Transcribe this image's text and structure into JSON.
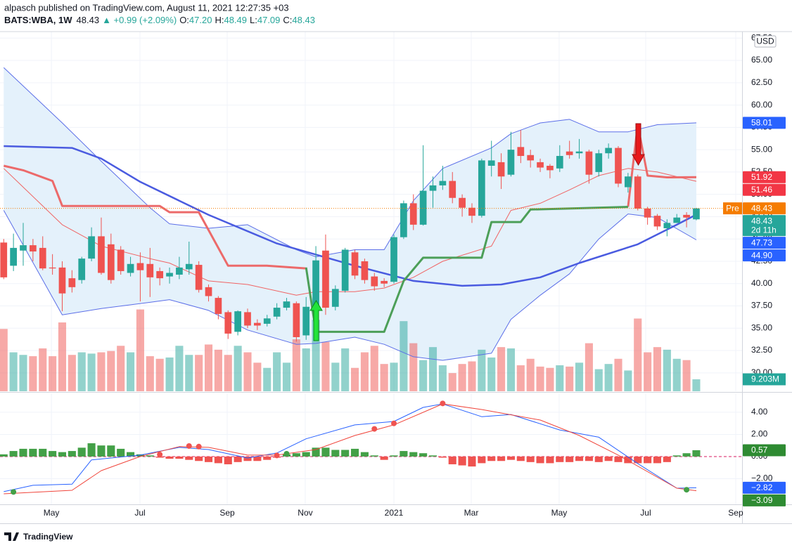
{
  "chart_data": {
    "type": "candlestick",
    "header": {
      "publisher": "alpasch published on TradingView.com, August 11, 2021 12:27:35 +03",
      "symbol": "BATS:WBA, 1W",
      "last": "48.43",
      "change": "▲ +0.99 (+2.09%)",
      "ohlc": [
        {
          "key": "O:",
          "value": "47.20"
        },
        {
          "key": "H:",
          "value": "48.49"
        },
        {
          "key": "L:",
          "value": "47.09"
        },
        {
          "key": "C:",
          "value": "48.43"
        }
      ]
    },
    "currency": "USD",
    "xlim": [
      -0.38,
      75.69
    ],
    "xticks": [
      {
        "value": 4.89,
        "label": "May"
      },
      {
        "value": 13.97,
        "label": "Jul"
      },
      {
        "value": 22.91,
        "label": "Sep"
      },
      {
        "value": 30.91,
        "label": "Nov"
      },
      {
        "value": 40,
        "label": "2021"
      },
      {
        "value": 47.93,
        "label": "Mar"
      },
      {
        "value": 56.94,
        "label": "May"
      },
      {
        "value": 65.81,
        "label": "Jul"
      },
      {
        "value": 75.04,
        "label": "Sep"
      }
    ],
    "ylim": [
      27.94,
      68.23
    ],
    "yticks": [
      {
        "value": 30,
        "label": "30.00"
      },
      {
        "value": 32.5,
        "label": "32.50"
      },
      {
        "value": 35,
        "label": "35.00"
      },
      {
        "value": 37.5,
        "label": "37.50"
      },
      {
        "value": 40,
        "label": "40.00"
      },
      {
        "value": 42.5,
        "label": "42.50"
      },
      {
        "value": 45,
        "label": "45.00"
      },
      {
        "value": 47.5,
        "label": "47.50"
      },
      {
        "value": 50,
        "label": "50.00"
      },
      {
        "value": 52.5,
        "label": "52.50"
      },
      {
        "value": 55,
        "label": "55.00"
      },
      {
        "value": 57.5,
        "label": "57.50"
      },
      {
        "value": 60,
        "label": "60.00"
      },
      {
        "value": 62.5,
        "label": "62.50"
      },
      {
        "value": 65,
        "label": "65.00"
      },
      {
        "value": 67.5,
        "label": "67.50"
      }
    ],
    "grid": true,
    "up_color": "#26a69a",
    "down_color": "#ef5350",
    "open": [
      44.6,
      42,
      43.7,
      44.3,
      44,
      41.8,
      41.8,
      40.6,
      40.4,
      42.8,
      45.3,
      44.4,
      43.8,
      41.2,
      42.3,
      42.2,
      41.4,
      40.8,
      41,
      41.6,
      42.1,
      39.6,
      38.4,
      36.8,
      34.6,
      36.8,
      35.6,
      35.5,
      36.3,
      37.3,
      37.8,
      34.2,
      37.5,
      43.7,
      37.4,
      39.2,
      43.5,
      42.5,
      40.8,
      40.3,
      40.2,
      45.2,
      49,
      46.6,
      50.4,
      51,
      51.5,
      49.6,
      48.5,
      47.6,
      53.2,
      53.6,
      52.2,
      55.3,
      54.4,
      53.6,
      53.2,
      52.9,
      54.8,
      54.6,
      54.8,
      52.5,
      54.6,
      55.2,
      50.8,
      52,
      48.4,
      47.6,
      46.2,
      46.8,
      47.7,
      47.2
    ],
    "high": [
      45,
      45.6,
      46.8,
      45,
      45.3,
      43.3,
      42.5,
      41.5,
      43,
      46.3,
      47.4,
      45.6,
      44.2,
      43,
      43.5,
      44,
      41.8,
      41.8,
      43,
      44.7,
      42.5,
      39.9,
      38.6,
      37,
      37,
      37.2,
      36,
      36.5,
      37.8,
      38.4,
      38,
      38.5,
      44.2,
      45.5,
      39.8,
      44,
      43.8,
      42.8,
      41.2,
      40.6,
      45.5,
      49.3,
      50,
      55.5,
      52,
      53.2,
      52.5,
      50,
      49,
      54,
      56,
      54.6,
      57,
      57.2,
      55,
      54,
      53.4,
      55.5,
      56,
      56.2,
      55,
      55,
      55.7,
      55.4,
      52.4,
      52.2,
      48.6,
      47.8,
      47.2,
      47.8,
      48,
      48.49
    ],
    "low": [
      40.5,
      41.4,
      42,
      42.5,
      41.5,
      41,
      36.9,
      39,
      40,
      42.5,
      41,
      40,
      41,
      40.8,
      38,
      38.5,
      39.8,
      40,
      40.5,
      41,
      39,
      38,
      36,
      33.8,
      34.2,
      35,
      34.8,
      35.2,
      36,
      37,
      33.5,
      33.7,
      37.3,
      36.5,
      37,
      39,
      40.5,
      40,
      39.2,
      39.6,
      40,
      45,
      46,
      46.5,
      48.5,
      50.5,
      49,
      47.5,
      46.8,
      47.4,
      52,
      50.6,
      52,
      53.5,
      53,
      52.5,
      51.8,
      52.5,
      54,
      54,
      51.2,
      52,
      54,
      50.8,
      50.2,
      48.2,
      46.6,
      46,
      45.3,
      46.8,
      46.3,
      47.09
    ],
    "close": [
      40.7,
      44,
      44.3,
      43.6,
      41.7,
      41.7,
      38.9,
      39.6,
      42.8,
      45.3,
      41.2,
      40.4,
      41.4,
      42.2,
      41.5,
      40.7,
      40.6,
      41.2,
      41.8,
      42.2,
      39.3,
      38.6,
      36.6,
      34.4,
      36.9,
      35.3,
      35.3,
      36.1,
      37.3,
      38,
      34,
      37.4,
      42.6,
      37.3,
      39.4,
      43.8,
      40.9,
      40.4,
      39.7,
      40,
      45.2,
      49,
      46.6,
      50.4,
      51,
      51.5,
      49.6,
      48.5,
      47.6,
      53.8,
      53.8,
      52,
      55,
      54.3,
      53.8,
      53,
      52.7,
      54.3,
      54.4,
      54.8,
      52.2,
      54.6,
      55.2,
      51.2,
      52,
      48.4,
      47.4,
      46.4,
      46.8,
      47.4,
      47.4,
      48.43
    ],
    "volume": [
      48,
      30,
      28,
      27,
      33,
      27,
      53,
      28,
      30,
      29,
      30,
      31,
      35,
      30,
      63,
      27,
      25,
      26,
      35,
      28,
      28,
      36,
      32,
      28,
      35,
      30,
      22,
      18,
      30,
      22,
      40,
      33,
      55,
      38,
      22,
      33,
      18,
      30,
      35,
      21,
      22,
      54,
      37,
      24,
      34,
      20,
      14,
      21,
      23,
      32,
      26,
      34,
      33,
      20,
      25,
      19,
      18,
      20,
      19,
      22,
      37,
      17,
      21,
      25,
      16,
      56,
      30,
      34,
      32,
      25,
      24,
      9.203
    ],
    "volume_lim": [
      0,
      277
    ],
    "volume_tag": {
      "value": 9.203,
      "label": "9.203M",
      "color": "#26a69a"
    },
    "bollinger": {
      "color": "#5b6ee8",
      "fill": "#e4f1fb",
      "x": [
        0,
        6,
        10,
        15,
        17,
        21,
        25,
        30,
        32,
        36,
        39,
        42,
        45,
        50,
        52,
        55,
        58,
        61,
        64,
        67,
        71
      ],
      "upper": [
        64.2,
        58,
        53.7,
        48.5,
        46.7,
        46.2,
        46.6,
        43.8,
        43,
        43.8,
        43.8,
        49.3,
        52.9,
        55.2,
        56.8,
        58,
        58.4,
        57,
        57,
        57.8,
        58.01
      ],
      "lower": [
        48.2,
        36.5,
        37.2,
        37.9,
        38.2,
        37,
        34.8,
        33.2,
        33.3,
        34,
        33.2,
        31.8,
        31.4,
        32.2,
        36,
        38.7,
        41.1,
        45,
        47.8,
        47.4,
        44.9
      ]
    },
    "lines": [
      {
        "color": "#f06464",
        "width": 1,
        "x": [
          0,
          6,
          10,
          15,
          17,
          21,
          25,
          30,
          32,
          36,
          39,
          42,
          45,
          50,
          52,
          55,
          58,
          61,
          64,
          67,
          71
        ],
        "values": [
          52.9,
          46.6,
          44.2,
          42.8,
          42.3,
          40.3,
          39.9,
          38.7,
          39.1,
          39.1,
          39.5,
          40.7,
          42.5,
          44.2,
          48.2,
          49,
          50.5,
          52.1,
          52.9,
          52.5,
          51.46
        ]
      },
      {
        "color": "#4a5be0",
        "width": 2.5,
        "x": [
          0,
          7,
          10,
          14,
          21,
          28,
          36,
          42,
          47,
          51,
          55,
          59,
          65,
          69,
          71
        ],
        "values": [
          55.4,
          55.2,
          54,
          51.4,
          47.7,
          44.5,
          42,
          40.3,
          39.75,
          39.9,
          40.7,
          42.3,
          44.4,
          46.6,
          47.73
        ]
      },
      {
        "color": "#ec6a6a",
        "width": 3,
        "x": [
          0,
          2,
          5,
          6,
          16,
          17,
          20,
          23,
          27,
          31,
          32,
          64,
          65,
          66,
          68,
          71
        ],
        "values": [
          53.2,
          52.7,
          51.5,
          48.7,
          48.7,
          48,
          48,
          42,
          42,
          41.7,
          null,
          48.6,
          57.8,
          52.1,
          51.9,
          51.92
        ]
      },
      {
        "color": "#4c9f58",
        "width": 3,
        "x": [
          31,
          32,
          39,
          41,
          43,
          49,
          50,
          53,
          54,
          64
        ],
        "values": [
          41.8,
          34.6,
          34.6,
          40.3,
          42.9,
          42.9,
          46.9,
          46.9,
          48.3,
          48.6
        ]
      }
    ],
    "price_tags": [
      {
        "value": 58.01,
        "label": "58.01",
        "color": "#2962ff"
      },
      {
        "value": 51.92,
        "label": "51.92",
        "color": "#f23645"
      },
      {
        "value": 51.46,
        "label": "51.46",
        "color": "#f23645"
      },
      {
        "value": 48.43,
        "label": "48.43",
        "color": "#f57c00",
        "prefix": "Pre"
      },
      {
        "value": 48.43,
        "label": "48.43",
        "color": "#26a69a",
        "countdown": "2d 11h"
      },
      {
        "value": 47.73,
        "label": "47.73",
        "color": "#2962ff"
      },
      {
        "value": 44.9,
        "label": "44.90",
        "color": "#2962ff"
      }
    ],
    "macd": {
      "ylim": [
        -4.32,
        5.71
      ],
      "yticks": [
        {
          "value": 4,
          "label": "4.00"
        },
        {
          "value": 2,
          "label": "2.00"
        },
        {
          "value": 0,
          "label": "0.00"
        },
        {
          "value": -2,
          "label": "−2.00"
        }
      ],
      "zero_color": "#d81b60",
      "up_color": "#43a047",
      "down_color": "#ef5350",
      "histogram": [
        0.2,
        0.5,
        0.7,
        0.7,
        0.7,
        0.5,
        0.4,
        0.5,
        0.8,
        1.2,
        1.0,
        1.0,
        0.7,
        0.4,
        0.2,
        0.1,
        -0.1,
        -0.2,
        -0.2,
        -0.3,
        -0.4,
        -0.5,
        -0.6,
        -0.7,
        -0.5,
        -0.4,
        -0.4,
        -0.3,
        -0.1,
        0.2,
        0.3,
        0.4,
        0.8,
        0.8,
        0.6,
        0.6,
        0.7,
        0.4,
        0.1,
        -0.3,
        0.1,
        0.5,
        0.4,
        0.3,
        0.1,
        -0.1,
        -0.7,
        -0.8,
        -0.9,
        -0.6,
        -0.4,
        -0.4,
        -0.3,
        -0.4,
        -0.5,
        -0.6,
        -0.6,
        -0.5,
        -0.5,
        -0.4,
        -0.4,
        -0.5,
        -0.4,
        -0.5,
        -0.6,
        -0.6,
        -0.6,
        -0.6,
        -0.5,
        0.1,
        0.3,
        0.57
      ],
      "macd": {
        "color": "#2962ff",
        "x": [
          0,
          3,
          7,
          9,
          14,
          18,
          21,
          25,
          28,
          31,
          36,
          40,
          43,
          45,
          49,
          52,
          57,
          61,
          65,
          69,
          71
        ],
        "values": [
          -3.17,
          -2.6,
          -2.5,
          -0.3,
          0.13,
          0.83,
          0.63,
          -0.13,
          0.32,
          1.6,
          2.86,
          3.17,
          4.44,
          4.76,
          3.6,
          3.8,
          2.4,
          1.75,
          -0.63,
          -2.86,
          -2.82
        ]
      },
      "signal": {
        "color": "#f0443a",
        "x": [
          0,
          7,
          10,
          14,
          18,
          21,
          25,
          28,
          32,
          36,
          40,
          45,
          49,
          55,
          59,
          63,
          69,
          71
        ],
        "values": [
          -3.37,
          -3.05,
          -1.27,
          0,
          0.9,
          0.83,
          0.13,
          0.13,
          0.63,
          1.9,
          2.86,
          4.76,
          4.25,
          3.3,
          1.9,
          0.13,
          -2.86,
          -3.09
        ]
      },
      "dots": {
        "x": [
          1,
          16,
          19,
          20,
          28,
          29,
          38,
          40,
          45,
          70
        ],
        "values": [
          -3.2,
          0.18,
          0.95,
          0.9,
          0.1,
          0.25,
          2.5,
          3.0,
          4.8,
          -3.0
        ],
        "colors": [
          "#43a047",
          "#ef5350",
          "#ef5350",
          "#ef5350",
          "#ef5350",
          "#43a047",
          "#ef5350",
          "#ef5350",
          "#ef5350",
          "#43a047"
        ]
      },
      "tags": [
        {
          "value": 0.57,
          "label": "0.57",
          "color": "#2e8b32"
        },
        {
          "value": -2.82,
          "label": "−2.82",
          "color": "#2962ff"
        },
        {
          "value": -3.09,
          "label": "−3.09",
          "color": "#2e8b32"
        }
      ]
    }
  },
  "footer": {
    "brand": "TradingView"
  }
}
